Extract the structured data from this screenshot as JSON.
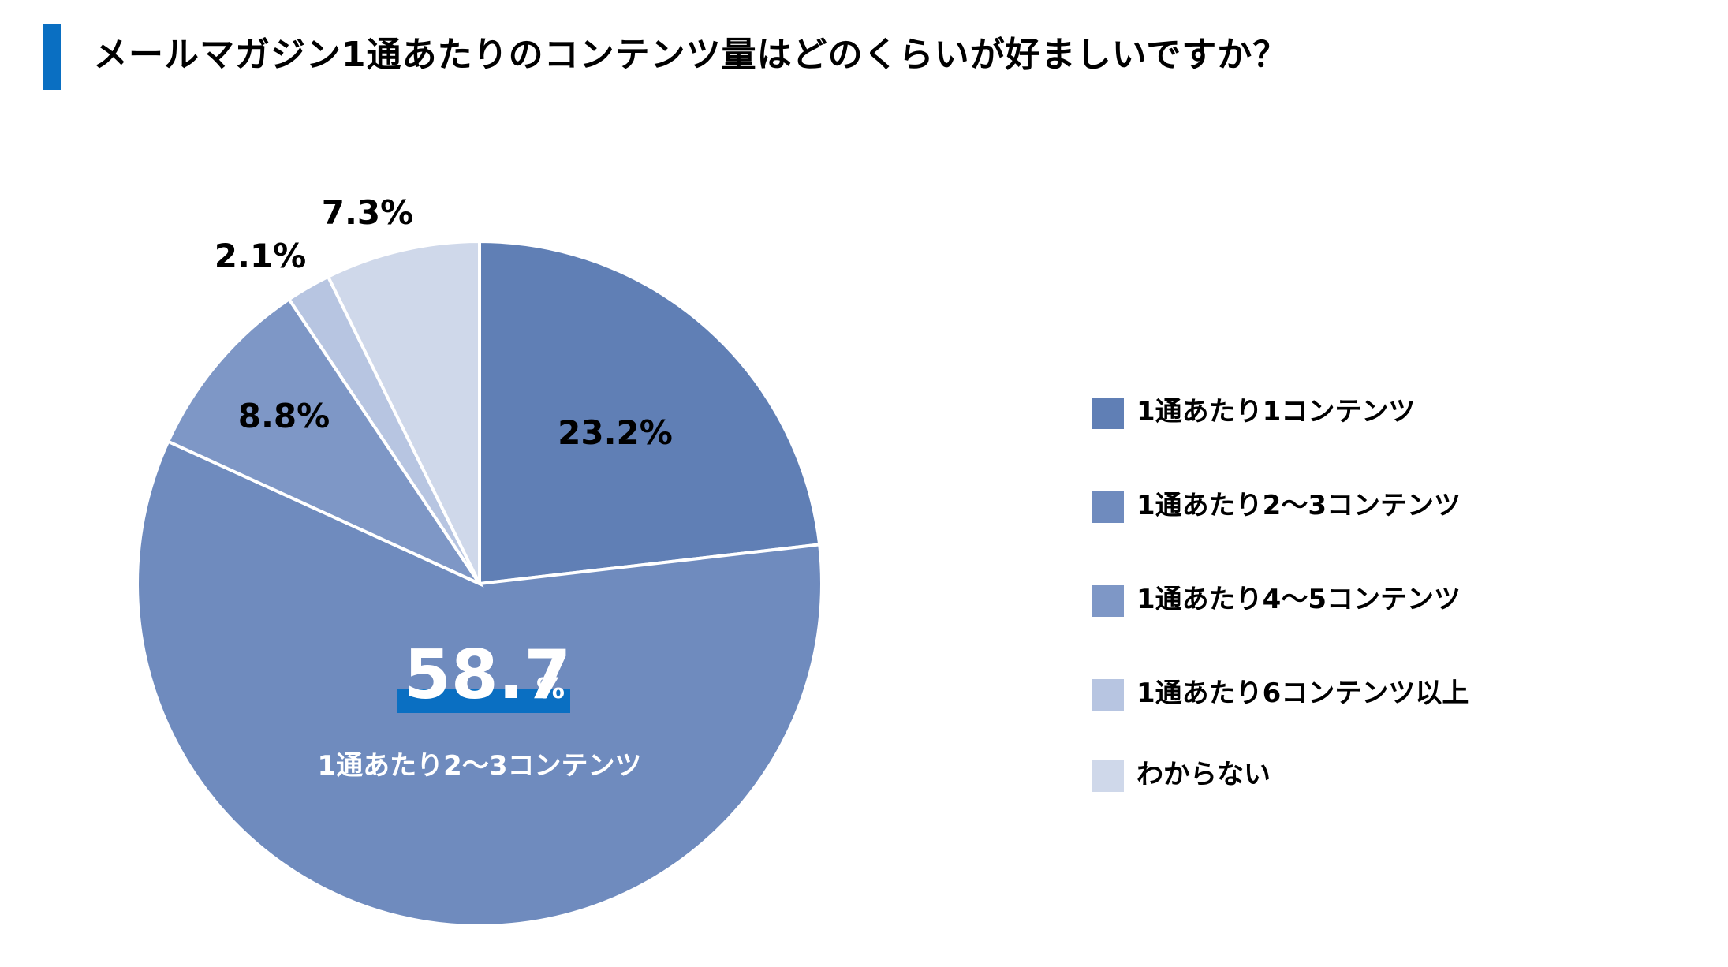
{
  "title": "メールマガジン1通あたりのコンテンツ量はどのくらいが好ましいですか？",
  "colors": {
    "accent": "#0a6fc2",
    "slices": [
      "#607fb5",
      "#6f8bbe",
      "#7e97c6",
      "#b7c5e1",
      "#cfd8ea"
    ]
  },
  "chart_data": {
    "type": "pie",
    "unit": "%",
    "categories": [
      "1通あたり1コンテンツ",
      "1通あたり2〜3コンテンツ",
      "1通あたり4〜5コンテンツ",
      "1通あたり6コンテンツ以上",
      "わからない"
    ],
    "values": [
      23.2,
      58.7,
      8.8,
      2.1,
      7.3
    ],
    "value_labels": [
      "23.2%",
      "58.7",
      "8.8%",
      "2.1%",
      "7.3%"
    ],
    "highlight": {
      "index": 1,
      "value": "58.7",
      "unit": "%",
      "sublabel": "1通あたり2〜3コンテンツ"
    },
    "legend_position": "right"
  }
}
